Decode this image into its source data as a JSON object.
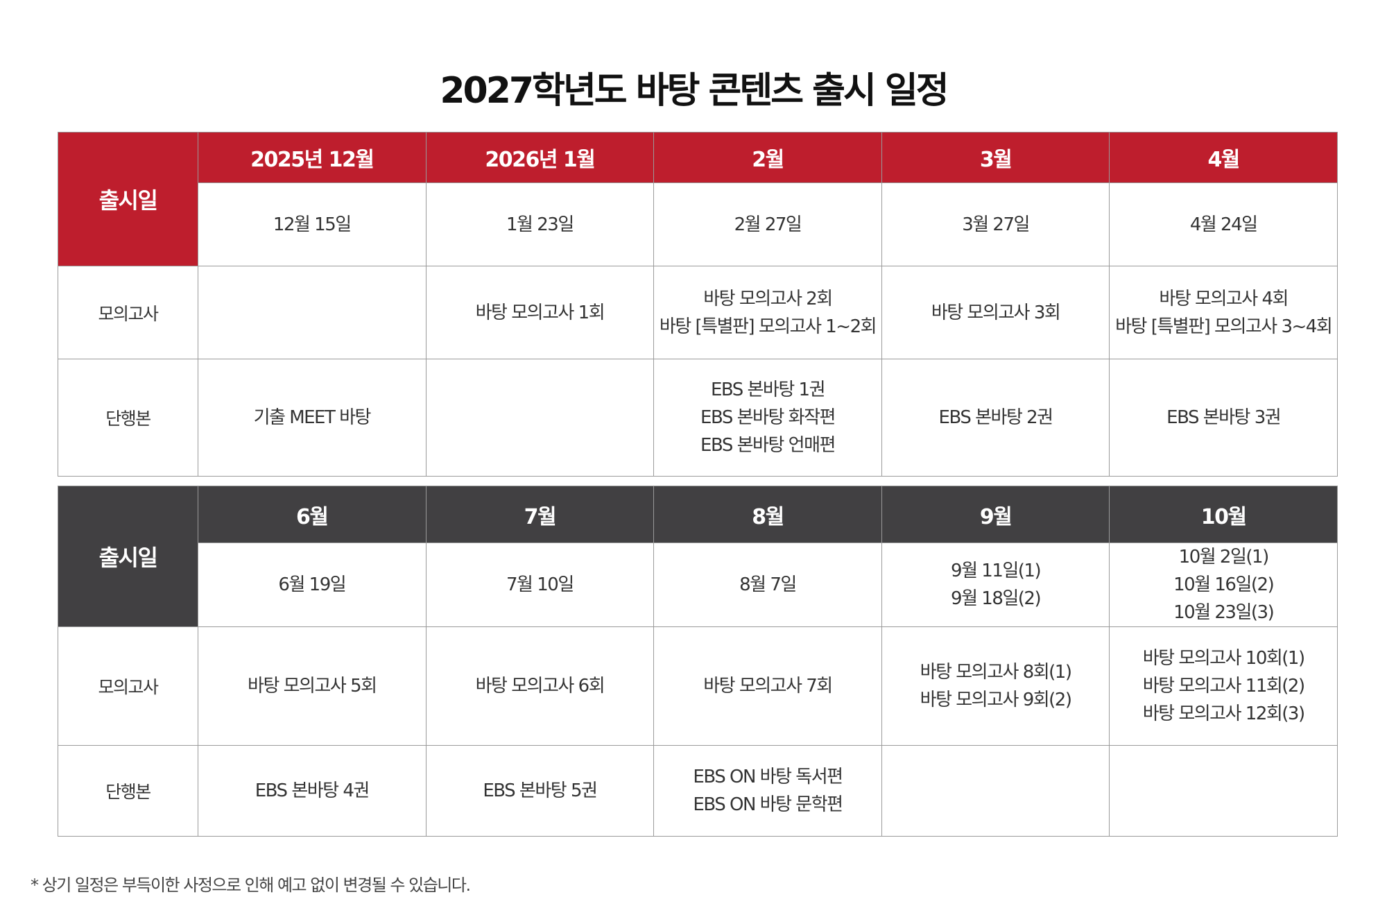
{
  "title": "2027학년도 바탕 콘텐츠 출시 일정",
  "row_labels": {
    "release": "출시일",
    "mock": "모의고사",
    "book": "단행본"
  },
  "colors": {
    "first_half_header": "#be1e2d",
    "second_half_header": "#414042"
  },
  "tables": [
    {
      "months": [
        "2025년 12월",
        "2026년 1월",
        "2월",
        "3월",
        "4월"
      ],
      "dates": [
        [
          "12월  15일"
        ],
        [
          "1월 23일"
        ],
        [
          "2월 27일"
        ],
        [
          "3월 27일"
        ],
        [
          "4월 24일"
        ]
      ],
      "mock": [
        [],
        [
          "바탕 모의고사 1회"
        ],
        [
          "바탕 모의고사 2회",
          "바탕 [특별판] 모의고사 1~2회"
        ],
        [
          "바탕 모의고사 3회"
        ],
        [
          "바탕 모의고사 4회",
          "바탕 [특별판] 모의고사 3~4회"
        ]
      ],
      "book": [
        [
          "기출 MEET 바탕"
        ],
        [],
        [
          "EBS 본바탕 1권",
          "EBS 본바탕 화작편",
          "EBS 본바탕 언매편"
        ],
        [
          "EBS 본바탕 2권"
        ],
        [
          "EBS 본바탕 3권"
        ]
      ]
    },
    {
      "months": [
        "6월",
        "7월",
        "8월",
        "9월",
        "10월"
      ],
      "dates": [
        [
          "6월 19일"
        ],
        [
          "7월 10일"
        ],
        [
          "8월 7일"
        ],
        [
          "9월 11일(1)",
          "9월 18일(2)"
        ],
        [
          "10월 2일(1)",
          "10월 16일(2)",
          "10월 23일(3)"
        ]
      ],
      "mock": [
        [
          "바탕 모의고사 5회"
        ],
        [
          "바탕 모의고사 6회"
        ],
        [
          "바탕 모의고사 7회"
        ],
        [
          "바탕 모의고사 8회(1)",
          "바탕 모의고사 9회(2)"
        ],
        [
          "바탕 모의고사 10회(1)",
          "바탕 모의고사 11회(2)",
          "바탕 모의고사 12회(3)"
        ]
      ],
      "book": [
        [
          "EBS 본바탕 4권"
        ],
        [
          "EBS 본바탕 5권"
        ],
        [
          "EBS ON 바탕 독서편",
          "EBS ON 바탕 문학편"
        ],
        [],
        []
      ]
    }
  ],
  "footnote": "* 상기 일정은 부득이한 사정으로 인해 예고 없이 변경될 수 있습니다."
}
